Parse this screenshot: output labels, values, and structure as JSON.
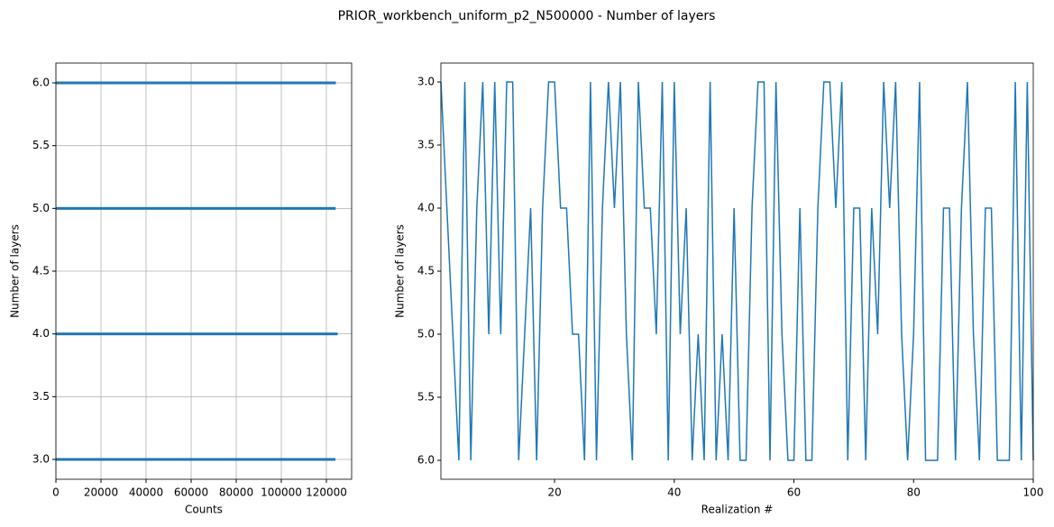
{
  "title": "PRIOR_workbench_uniform_p2_N500000 - Number of layers",
  "chart_data": [
    {
      "type": "barh",
      "xlabel": "Counts",
      "ylabel": "Number of layers",
      "y": [
        3,
        4,
        5,
        6
      ],
      "values": [
        124000,
        125000,
        124100,
        124200
      ],
      "color": "#1f77b4",
      "xlim": [
        0,
        131200
      ],
      "xticks": [
        0,
        20000,
        40000,
        60000,
        80000,
        100000,
        120000
      ],
      "ylim": [
        2.842,
        6.158
      ],
      "yticks": [
        {
          "value": 3,
          "label": "3.0"
        },
        {
          "value": 3.5,
          "label": "3.5"
        },
        {
          "value": 4,
          "label": "4.0"
        },
        {
          "value": 4.5,
          "label": "4.5"
        },
        {
          "value": 5,
          "label": "5.0"
        },
        {
          "value": 5.5,
          "label": "5.5"
        },
        {
          "value": 6,
          "label": "6.0"
        }
      ],
      "grid": true
    },
    {
      "type": "line",
      "xlabel": "Realization #",
      "ylabel": "Number of layers",
      "x": [
        1,
        2,
        3,
        4,
        5,
        6,
        7,
        8,
        9,
        10,
        11,
        12,
        13,
        14,
        15,
        16,
        17,
        18,
        19,
        20,
        21,
        22,
        23,
        24,
        25,
        26,
        27,
        28,
        29,
        30,
        31,
        32,
        33,
        34,
        35,
        36,
        37,
        38,
        39,
        40,
        41,
        42,
        43,
        44,
        45,
        46,
        47,
        48,
        49,
        50,
        51,
        52,
        53,
        54,
        55,
        56,
        57,
        58,
        59,
        60,
        61,
        62,
        63,
        64,
        65,
        66,
        67,
        68,
        69,
        70,
        71,
        72,
        73,
        74,
        75,
        76,
        77,
        78,
        79,
        80,
        81,
        82,
        83,
        84,
        85,
        86,
        87,
        88,
        89,
        90,
        91,
        92,
        93,
        94,
        95,
        96,
        97,
        98,
        99,
        100
      ],
      "series": [
        {
          "color": "#1f77b4",
          "values": [
            3,
            4,
            5,
            6,
            3,
            6,
            4,
            3,
            5,
            3,
            5,
            3,
            3,
            6,
            5,
            4,
            6,
            4,
            3,
            3,
            4,
            4,
            5,
            5,
            6,
            3,
            6,
            4,
            3,
            4,
            3,
            5,
            6,
            3,
            4,
            4,
            5,
            3,
            6,
            3,
            5,
            4,
            6,
            5,
            6,
            3,
            6,
            5,
            6,
            4,
            6,
            6,
            4,
            3,
            3,
            6,
            3,
            5,
            6,
            6,
            4,
            6,
            6,
            4,
            3,
            3,
            4,
            3,
            6,
            4,
            4,
            6,
            4,
            5,
            3,
            4,
            3,
            5,
            6,
            5,
            3,
            6,
            6,
            6,
            4,
            4,
            6,
            4,
            3,
            5,
            6,
            4,
            4,
            6,
            6,
            6,
            3,
            6,
            3,
            6
          ]
        }
      ],
      "xlim": [
        1,
        100
      ],
      "xticks": [
        20,
        40,
        60,
        80,
        100
      ],
      "ylim": [
        6.15,
        2.85
      ],
      "yticks": [
        {
          "value": 3,
          "label": "3.0"
        },
        {
          "value": 3.5,
          "label": "3.5"
        },
        {
          "value": 4,
          "label": "4.0"
        },
        {
          "value": 4.5,
          "label": "4.5"
        },
        {
          "value": 5,
          "label": "5.0"
        },
        {
          "value": 5.5,
          "label": "5.5"
        },
        {
          "value": 6,
          "label": "6.0"
        }
      ],
      "grid": false
    }
  ]
}
